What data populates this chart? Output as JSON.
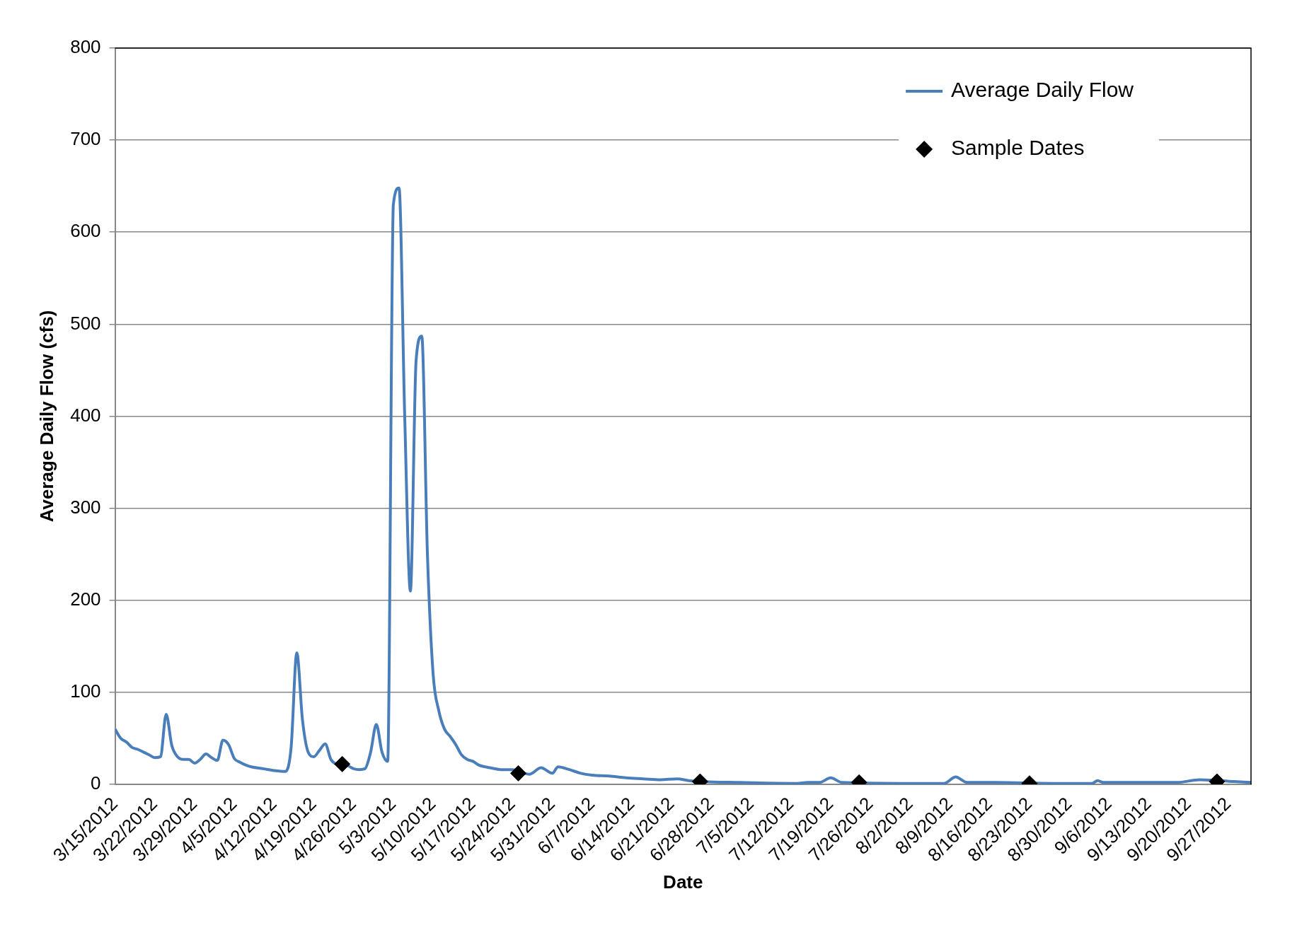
{
  "chart_data": {
    "type": "line",
    "xlabel": "Date",
    "ylabel": "Average Daily Flow (cfs)",
    "xlim": [
      "2012-03-15",
      "2012-10-01"
    ],
    "xticks": [
      {
        "value": "2012-03-15",
        "label": "3/15/2012"
      },
      {
        "value": "2012-03-22",
        "label": "3/22/2012"
      },
      {
        "value": "2012-03-29",
        "label": "3/29/2012"
      },
      {
        "value": "2012-04-05",
        "label": "4/5/2012"
      },
      {
        "value": "2012-04-12",
        "label": "4/12/2012"
      },
      {
        "value": "2012-04-19",
        "label": "4/19/2012"
      },
      {
        "value": "2012-04-26",
        "label": "4/26/2012"
      },
      {
        "value": "2012-05-03",
        "label": "5/3/2012"
      },
      {
        "value": "2012-05-10",
        "label": "5/10/2012"
      },
      {
        "value": "2012-05-17",
        "label": "5/17/2012"
      },
      {
        "value": "2012-05-24",
        "label": "5/24/2012"
      },
      {
        "value": "2012-05-31",
        "label": "5/31/2012"
      },
      {
        "value": "2012-06-07",
        "label": "6/7/2012"
      },
      {
        "value": "2012-06-14",
        "label": "6/14/2012"
      },
      {
        "value": "2012-06-21",
        "label": "6/21/2012"
      },
      {
        "value": "2012-06-28",
        "label": "6/28/2012"
      },
      {
        "value": "2012-07-05",
        "label": "7/5/2012"
      },
      {
        "value": "2012-07-12",
        "label": "7/12/2012"
      },
      {
        "value": "2012-07-19",
        "label": "7/19/2012"
      },
      {
        "value": "2012-07-26",
        "label": "7/26/2012"
      },
      {
        "value": "2012-08-02",
        "label": "8/2/2012"
      },
      {
        "value": "2012-08-09",
        "label": "8/9/2012"
      },
      {
        "value": "2012-08-16",
        "label": "8/16/2012"
      },
      {
        "value": "2012-08-23",
        "label": "8/23/2012"
      },
      {
        "value": "2012-08-30",
        "label": "8/30/2012"
      },
      {
        "value": "2012-09-06",
        "label": "9/6/2012"
      },
      {
        "value": "2012-09-13",
        "label": "9/13/2012"
      },
      {
        "value": "2012-09-20",
        "label": "9/20/2012"
      },
      {
        "value": "2012-09-27",
        "label": "9/27/2012"
      }
    ],
    "ylim": [
      0,
      800
    ],
    "yticks": [
      0,
      100,
      200,
      300,
      400,
      500,
      600,
      700,
      800
    ],
    "grid": "y",
    "legend": "top right",
    "series": [
      {
        "name": "Average Daily Flow",
        "type": "line",
        "color": "#4a7ebb",
        "marker": "none",
        "x": [
          "2012-03-15",
          "2012-03-16",
          "2012-03-17",
          "2012-03-18",
          "2012-03-19",
          "2012-03-20",
          "2012-03-21",
          "2012-03-22",
          "2012-03-23",
          "2012-03-24",
          "2012-03-25",
          "2012-03-26",
          "2012-03-27",
          "2012-03-28",
          "2012-03-29",
          "2012-03-30",
          "2012-03-31",
          "2012-04-01",
          "2012-04-02",
          "2012-04-03",
          "2012-04-04",
          "2012-04-05",
          "2012-04-06",
          "2012-04-07",
          "2012-04-08",
          "2012-04-10",
          "2012-04-12",
          "2012-04-14",
          "2012-04-15",
          "2012-04-16",
          "2012-04-17",
          "2012-04-18",
          "2012-04-19",
          "2012-04-20",
          "2012-04-21",
          "2012-04-22",
          "2012-04-23",
          "2012-04-25",
          "2012-04-26",
          "2012-04-27",
          "2012-04-28",
          "2012-04-29",
          "2012-04-30",
          "2012-05-01",
          "2012-05-02",
          "2012-05-03",
          "2012-05-04",
          "2012-05-05",
          "2012-05-06",
          "2012-05-07",
          "2012-05-08",
          "2012-05-09",
          "2012-05-10",
          "2012-05-11",
          "2012-05-12",
          "2012-05-13",
          "2012-05-14",
          "2012-05-15",
          "2012-05-16",
          "2012-05-17",
          "2012-05-18",
          "2012-05-20",
          "2012-05-22",
          "2012-05-24",
          "2012-05-26",
          "2012-05-27",
          "2012-05-29",
          "2012-05-31",
          "2012-06-01",
          "2012-06-03",
          "2012-06-05",
          "2012-06-07",
          "2012-06-10",
          "2012-06-13",
          "2012-06-16",
          "2012-06-19",
          "2012-06-22",
          "2012-06-24",
          "2012-06-26",
          "2012-07-03",
          "2012-07-13",
          "2012-07-15",
          "2012-07-17",
          "2012-07-19",
          "2012-07-21",
          "2012-08-02",
          "2012-08-08",
          "2012-08-10",
          "2012-08-12",
          "2012-08-17",
          "2012-08-27",
          "2012-09-03",
          "2012-09-04",
          "2012-09-05",
          "2012-09-18",
          "2012-09-22",
          "2012-09-28",
          "2012-10-01"
        ],
        "values": [
          60,
          50,
          46,
          40,
          38,
          35,
          32,
          29,
          30,
          76,
          42,
          30,
          27,
          27,
          23,
          27,
          33,
          29,
          26,
          48,
          43,
          28,
          24,
          21,
          19,
          17,
          15,
          14,
          40,
          143,
          70,
          35,
          30,
          37,
          44,
          27,
          22,
          20,
          17,
          16,
          17,
          35,
          65,
          35,
          25,
          630,
          648,
          400,
          210,
          460,
          487,
          250,
          120,
          80,
          60,
          52,
          43,
          32,
          27,
          25,
          21,
          18,
          16,
          16,
          12,
          11,
          18,
          12,
          19,
          16,
          12,
          10,
          9,
          7,
          6,
          5,
          6,
          4,
          3,
          2,
          1,
          2,
          2,
          7,
          2,
          1,
          1,
          8,
          2,
          2,
          1,
          1,
          4,
          2,
          2,
          5,
          3,
          2
        ]
      },
      {
        "name": "Sample Dates",
        "type": "scatter",
        "color": "#000000",
        "marker": "diamond",
        "x": [
          "2012-04-24",
          "2012-05-25",
          "2012-06-26",
          "2012-07-24",
          "2012-08-23",
          "2012-09-25"
        ],
        "values": [
          22,
          12,
          3,
          2,
          1,
          3
        ]
      }
    ]
  }
}
